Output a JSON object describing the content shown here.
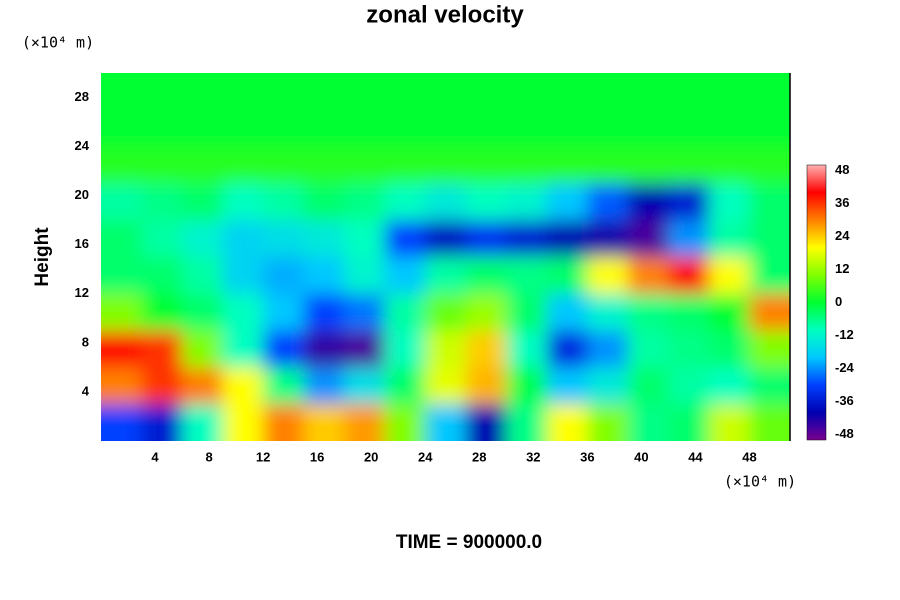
{
  "chart_data": {
    "type": "contour",
    "title": "zonal velocity",
    "ylabel": "Height",
    "x_unit": "(×10⁴ m)",
    "y_unit": "(×10⁴ m)",
    "footer": "TIME = 900000.0",
    "xlim": [
      0,
      51
    ],
    "ylim": [
      0,
      30
    ],
    "xticks": [
      4,
      8,
      12,
      16,
      20,
      24,
      28,
      32,
      36,
      40,
      44,
      48
    ],
    "yticks": [
      4,
      8,
      12,
      16,
      20,
      24,
      28
    ],
    "clim": [
      -50,
      50
    ],
    "cticks": [
      48,
      36,
      24,
      12,
      0,
      -12,
      -24,
      -36,
      -48
    ],
    "colormap": [
      "#7a0090",
      "#0000b0",
      "#0040ff",
      "#00c8ff",
      "#00ffc0",
      "#00ff30",
      "#80ff00",
      "#ffff00",
      "#ff8000",
      "#ff0000",
      "#ffb0b0"
    ],
    "x": [
      1.5,
      4.5,
      7.5,
      10.5,
      13.5,
      16.5,
      19.5,
      22.5,
      25.5,
      28.5,
      31.5,
      34.5,
      37.5,
      40.5,
      43.5,
      46.5,
      49.5
    ],
    "y": [
      28.5,
      25.5,
      22.5,
      19.5,
      16.5,
      13.5,
      10.5,
      7.5,
      4.5,
      1.5
    ],
    "z": [
      [
        0,
        0,
        0,
        0,
        0,
        0,
        0,
        0,
        0,
        0,
        0,
        0,
        0,
        0,
        0,
        0,
        0
      ],
      [
        0,
        0,
        0,
        0,
        0,
        0,
        0,
        0,
        0,
        0,
        0,
        0,
        0,
        0,
        0,
        0,
        0
      ],
      [
        3,
        3,
        3,
        3,
        3,
        3,
        3,
        3,
        3,
        3,
        3,
        3,
        3,
        3,
        3,
        3,
        3
      ],
      [
        -8,
        -6,
        -4,
        -10,
        -8,
        -4,
        -6,
        -10,
        -14,
        -10,
        -12,
        -20,
        -28,
        -40,
        -36,
        -10,
        -4
      ],
      [
        -4,
        -8,
        -12,
        -18,
        -16,
        -14,
        -10,
        -30,
        -38,
        -32,
        -36,
        -40,
        -42,
        -46,
        -24,
        -8,
        -4
      ],
      [
        -4,
        -4,
        -8,
        -18,
        -22,
        -20,
        -12,
        -20,
        -8,
        -4,
        -6,
        -4,
        20,
        30,
        40,
        20,
        -4
      ],
      [
        10,
        0,
        -4,
        -10,
        -20,
        -30,
        -26,
        -8,
        8,
        12,
        -4,
        -20,
        -12,
        -6,
        -4,
        0,
        30
      ],
      [
        40,
        36,
        10,
        -10,
        -30,
        -44,
        -46,
        -10,
        16,
        24,
        -10,
        -34,
        -24,
        -8,
        -6,
        -4,
        10
      ],
      [
        30,
        36,
        30,
        20,
        -6,
        -24,
        -16,
        -4,
        18,
        26,
        -2,
        -20,
        -14,
        -4,
        -8,
        -10,
        -4
      ],
      [
        -30,
        -36,
        -10,
        20,
        30,
        24,
        28,
        10,
        -20,
        -40,
        -6,
        20,
        10,
        -6,
        -4,
        16,
        8
      ]
    ]
  }
}
